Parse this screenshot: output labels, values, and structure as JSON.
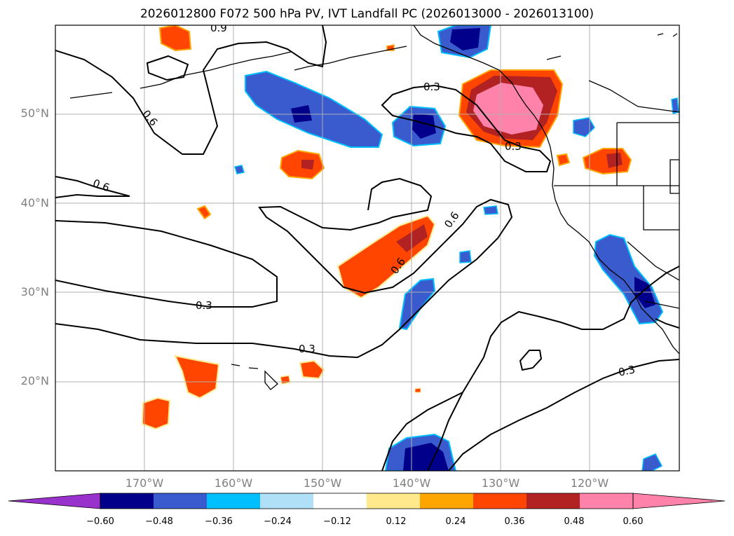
{
  "title": "2026012800 F072 500 hPa PV, IVT Landfall PC (2026013000 - 2026013100)",
  "axes": {
    "lat_labels": [
      "50°N",
      "40°N",
      "30°N",
      "20°N"
    ],
    "lon_labels": [
      "170°W",
      "160°W",
      "150°W",
      "140°W",
      "130°W",
      "120°W"
    ]
  },
  "contour_labels": [
    "0.9",
    "0.6",
    "0.6",
    "0.3",
    "0.3",
    "0.3",
    "0.6",
    "0.6",
    "0.3",
    "0.3"
  ],
  "colorbar": {
    "ticks": [
      "−0.60",
      "−0.48",
      "−0.36",
      "−0.24",
      "−0.12",
      "0.12",
      "0.24",
      "0.36",
      "0.48",
      "0.60"
    ],
    "colors": [
      "#9932cc",
      "#00008b",
      "#3a5bcd",
      "#00bfff",
      "#b0e0f8",
      "#ffffff",
      "#ffe98c",
      "#ffa500",
      "#ff4500",
      "#b22222",
      "#ff82ab",
      "#ff82ab"
    ]
  }
}
